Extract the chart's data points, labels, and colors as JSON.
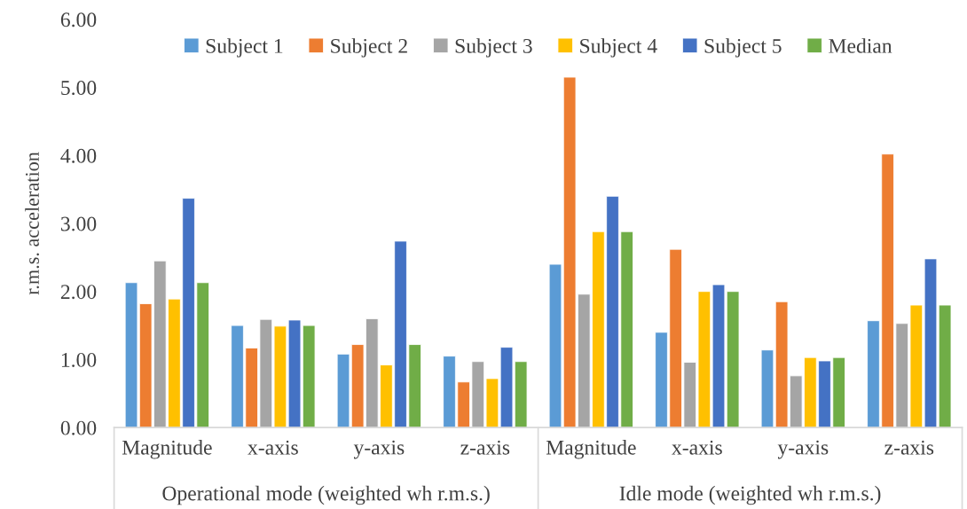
{
  "chart_data": {
    "type": "bar",
    "ylabel": "r.m.s. acceleration",
    "categories": [
      "Magnitude",
      "x-axis",
      "y-axis",
      "z-axis",
      "Magnitude",
      "x-axis",
      "y-axis",
      "z-axis"
    ],
    "series": [
      {
        "name": "Subject 1",
        "color": "#5b9bd5",
        "values": [
          2.13,
          1.5,
          1.08,
          1.05,
          2.4,
          1.4,
          1.14,
          1.57
        ]
      },
      {
        "name": "Subject 2",
        "color": "#ed7d31",
        "values": [
          1.82,
          1.17,
          1.22,
          0.67,
          5.15,
          2.62,
          1.85,
          4.02
        ]
      },
      {
        "name": "Subject 3",
        "color": "#a5a5a5",
        "values": [
          2.45,
          1.59,
          1.6,
          0.97,
          1.96,
          0.96,
          0.76,
          1.53
        ]
      },
      {
        "name": "Subject 4",
        "color": "#ffc000",
        "values": [
          1.89,
          1.49,
          0.92,
          0.72,
          2.88,
          2.0,
          1.03,
          1.8
        ]
      },
      {
        "name": "Subject 5",
        "color": "#4472c4",
        "values": [
          3.37,
          1.58,
          2.74,
          1.18,
          3.4,
          2.1,
          0.98,
          2.48
        ]
      },
      {
        "name": "Median",
        "color": "#70ad47",
        "values": [
          2.13,
          1.5,
          1.22,
          0.97,
          2.88,
          2.0,
          1.03,
          1.8
        ]
      }
    ],
    "ylim": [
      0,
      6
    ],
    "yticks": [
      {
        "value": 0,
        "label": "0.00"
      },
      {
        "value": 1,
        "label": "1.00"
      },
      {
        "value": 2,
        "label": "2.00"
      },
      {
        "value": 3,
        "label": "3.00"
      },
      {
        "value": 4,
        "label": "4.00"
      },
      {
        "value": 5,
        "label": "5.00"
      },
      {
        "value": 6,
        "label": "6.00"
      }
    ],
    "annotations": [
      "Operational mode (weighted wh r.m.s.)",
      "Idle mode (weighted wh r.m.s.)"
    ],
    "legend": "top",
    "grid": false
  }
}
